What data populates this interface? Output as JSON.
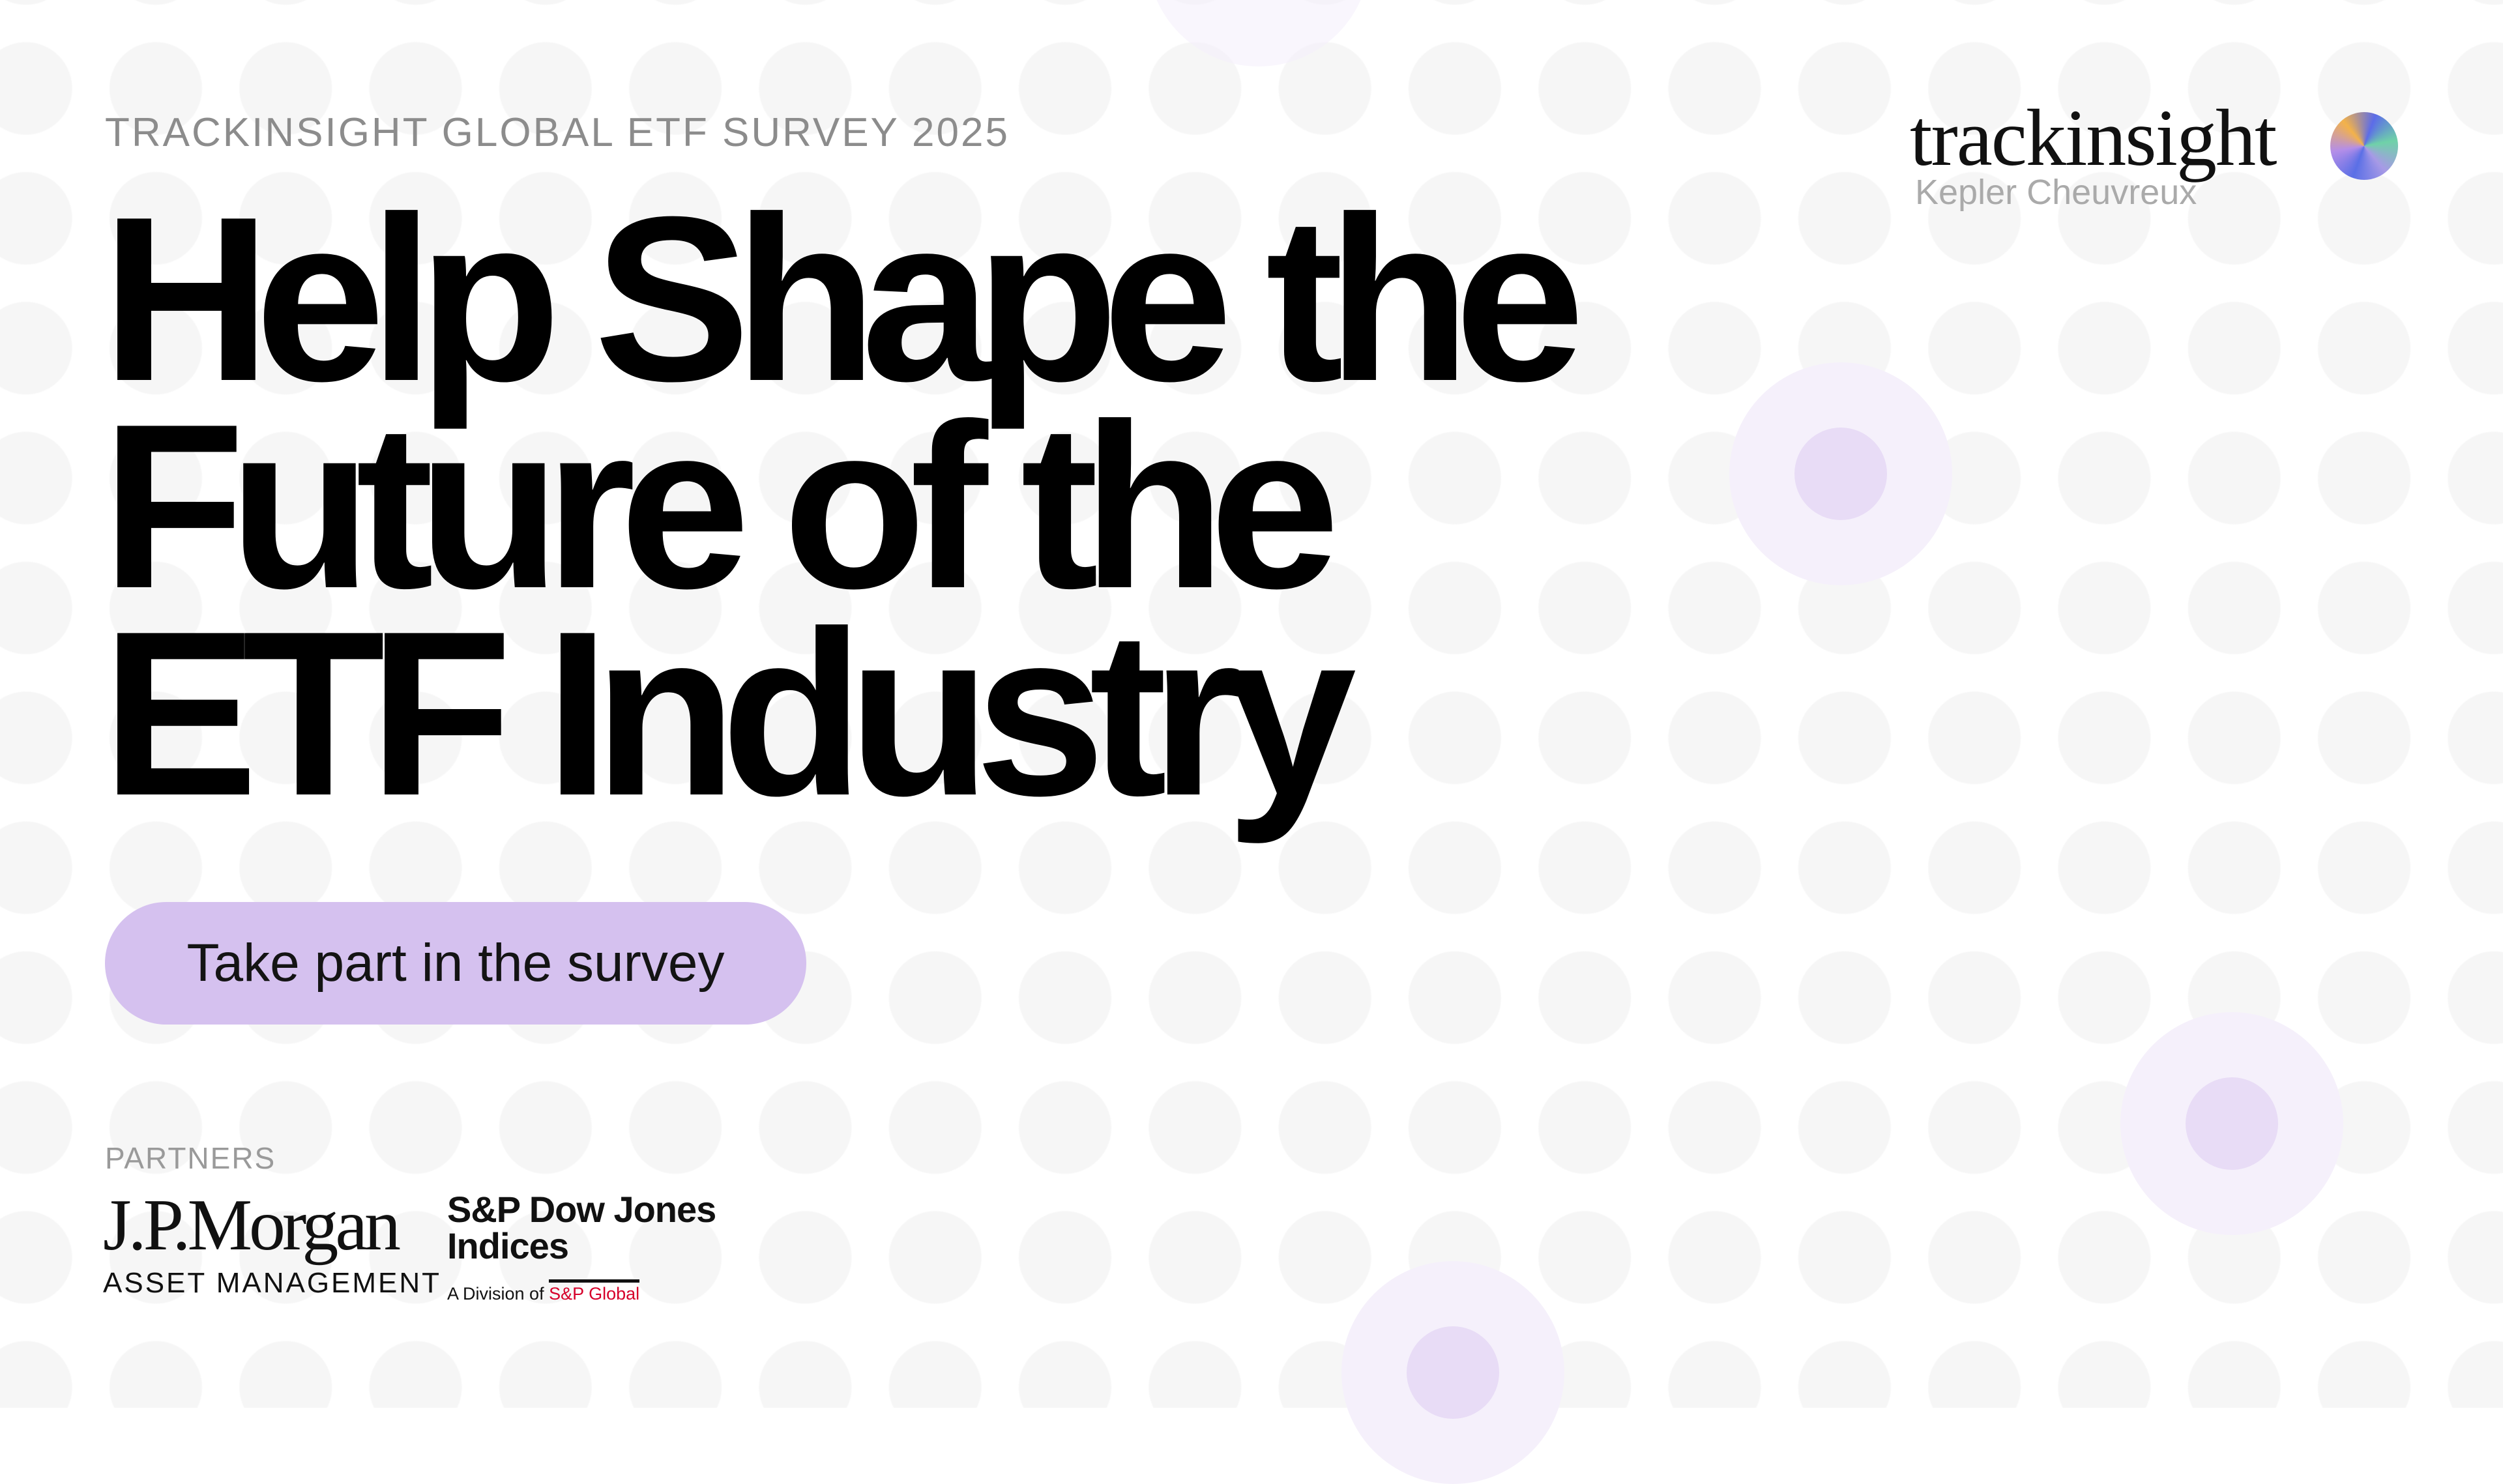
{
  "eyebrow": "TRACKINSIGHT GLOBAL ETF SURVEY 2025",
  "headline": [
    "Help Shape the",
    "Future of the",
    "ETF Industry"
  ],
  "cta_label": "Take part in the survey",
  "brand": {
    "name": "trackinsight",
    "subtitle": "Kepler Cheuvreux",
    "icon": "gradient-orb-logo"
  },
  "partners": {
    "label": "PARTNERS",
    "jpmorgan": {
      "name": "J.P.Morgan",
      "sub": "ASSET MANAGEMENT"
    },
    "spdji": {
      "line1": "S&P Dow Jones",
      "line2": "Indices",
      "division": "A Division of",
      "parent": "S&P Global"
    }
  },
  "colors": {
    "accent": "#d5c1ef",
    "highlight_dot": "#e8dcf6",
    "sp_red": "#d6002a",
    "muted_text": "#8c8c8c"
  }
}
